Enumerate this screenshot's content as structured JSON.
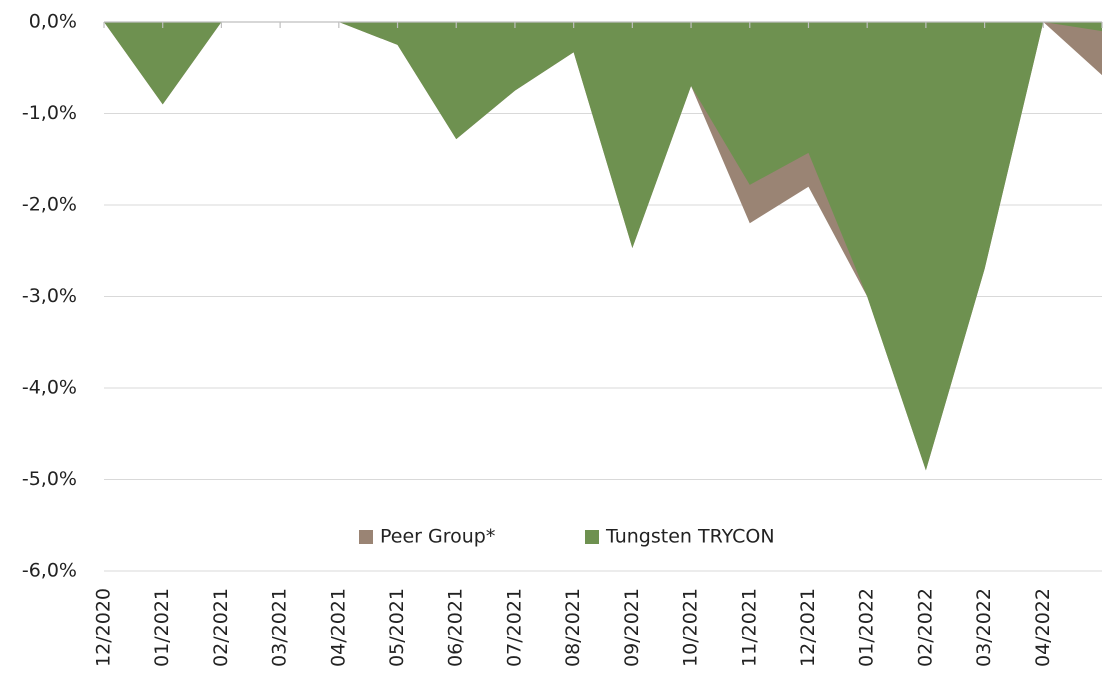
{
  "chart_data": {
    "type": "area",
    "categories": [
      "12/2020",
      "01/2021",
      "02/2021",
      "03/2021",
      "04/2021",
      "05/2021",
      "06/2021",
      "07/2021",
      "08/2021",
      "09/2021",
      "10/2021",
      "11/2021",
      "12/2021",
      "01/2022",
      "02/2022",
      "03/2022",
      "04/2022",
      null
    ],
    "series": [
      {
        "name": "Peer Group*",
        "color": "#9a8474",
        "values": [
          0,
          -0.9,
          0,
          0,
          0,
          -0.25,
          -1.28,
          -0.75,
          -0.33,
          -2.47,
          -0.7,
          -2.2,
          -1.8,
          -3.0,
          -4.9,
          -2.7,
          0,
          -0.58
        ]
      },
      {
        "name": "Tungsten TRYCON",
        "color": "#6e9150",
        "values": [
          0,
          -0.9,
          0,
          0,
          0,
          -0.25,
          -1.28,
          -0.75,
          -0.33,
          -2.47,
          -0.7,
          -1.78,
          -1.43,
          -3.0,
          -4.9,
          -2.7,
          0,
          -0.1
        ]
      }
    ],
    "ylim": [
      -6,
      0
    ],
    "yticks": [
      {
        "value": 0,
        "label": "0,0%"
      },
      {
        "value": -1,
        "label": "-1,0%"
      },
      {
        "value": -2,
        "label": "-2,0%"
      },
      {
        "value": -3,
        "label": "-3,0%"
      },
      {
        "value": -4,
        "label": "-4,0%"
      },
      {
        "value": -5,
        "label": "-5,0%"
      },
      {
        "value": -6,
        "label": "-6,0%"
      }
    ],
    "grid": true,
    "legend": "bottom"
  }
}
